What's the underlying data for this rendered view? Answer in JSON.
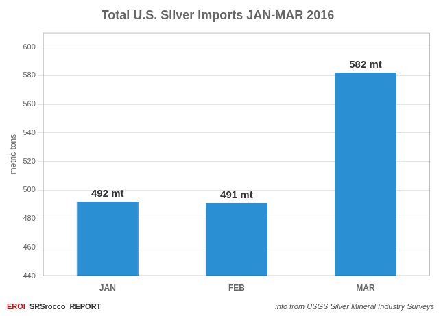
{
  "chart_data": {
    "type": "bar",
    "title": "Total U.S. Silver Imports JAN-MAR 2016",
    "categories": [
      "JAN",
      "FEB",
      "MAR"
    ],
    "values": [
      492,
      491,
      582
    ],
    "value_labels": [
      "492 mt",
      "491 mt",
      "582 mt"
    ],
    "data_labels": true,
    "color": "#2b8fd4",
    "ylabel": "metric tons",
    "ylim": [
      440,
      610
    ],
    "yticks": [
      440,
      460,
      480,
      500,
      520,
      540,
      560,
      580,
      600
    ],
    "grid": true,
    "annotations": [
      "info from USGS Silver Mineral Industry Surveys",
      "EROI",
      "SRSrocco",
      "REPORT"
    ]
  }
}
